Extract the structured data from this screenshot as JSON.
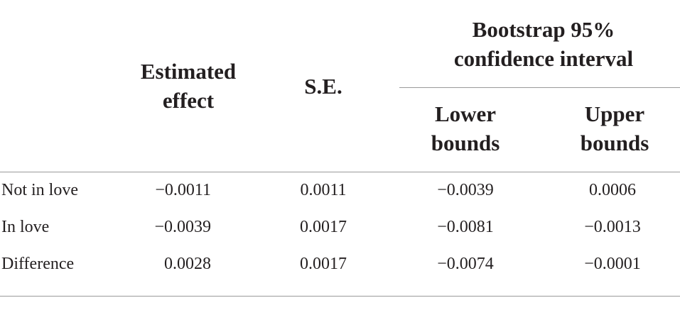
{
  "table": {
    "header": {
      "estimated_effect": "Estimated effect",
      "se": "S.E.",
      "ci_group": "Bootstrap 95% confidence interval",
      "lower": "Lower bounds",
      "upper": "Upper bounds"
    },
    "rows": [
      [
        "Not in love",
        "−0.0011",
        "0.0011",
        "−0.0039",
        "0.0006"
      ],
      [
        "In love",
        "−0.0039",
        "0.0017",
        "−0.0081",
        "−0.0013"
      ],
      [
        "Difference",
        "0.0028",
        "0.0017",
        "−0.0074",
        "−0.0001"
      ]
    ]
  }
}
